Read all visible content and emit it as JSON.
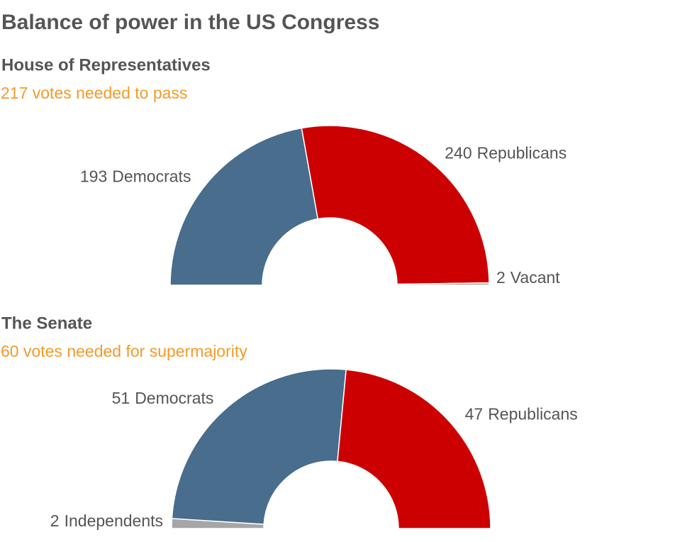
{
  "title": "Balance of power in the US Congress",
  "chart_data": [
    {
      "type": "half-donut",
      "title": "House of Representatives",
      "subtitle": "217 votes needed to pass",
      "categories": [
        "Democrats",
        "Republicans",
        "Vacant"
      ],
      "values": [
        193,
        240,
        2
      ],
      "colors": [
        "#486d8d",
        "#cc0000",
        "#a6a6a6"
      ]
    },
    {
      "type": "half-donut",
      "title": "The Senate",
      "subtitle": "60 votes needed for supermajority",
      "categories": [
        "Independents",
        "Democrats",
        "Republicans"
      ],
      "values": [
        2,
        51,
        47
      ],
      "colors": [
        "#a6a6a6",
        "#486d8d",
        "#cc0000"
      ]
    }
  ]
}
